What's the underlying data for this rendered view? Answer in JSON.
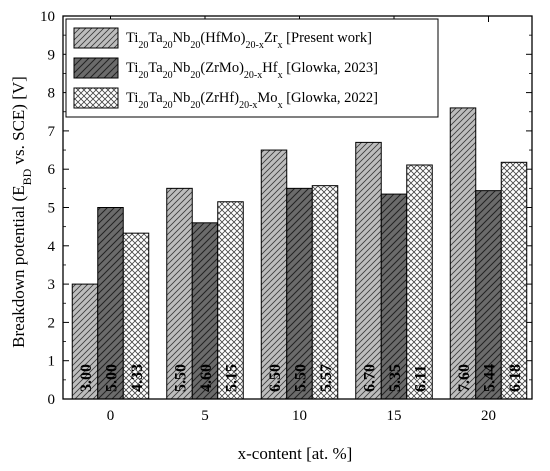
{
  "chart_data": {
    "type": "bar",
    "xlabel": "x-content [at. %]",
    "ylabel": "Breakdown potential (E_BD vs. SCE) [V]",
    "categories": [
      "0",
      "5",
      "10",
      "15",
      "20"
    ],
    "ylim": [
      0,
      10
    ],
    "yticks": [
      "0",
      "1",
      "2",
      "3",
      "4",
      "5",
      "6",
      "7",
      "8",
      "9",
      "10"
    ],
    "grid": false,
    "legend_position": "top-left",
    "series": [
      {
        "name": "Ti20Ta20Nb20(HfMo)20-xZrx [Present work]",
        "legend": {
          "pre": "Ti",
          "s1": "20",
          "m1": "Ta",
          "s2": "20",
          "m2": "Nb",
          "s3": "20",
          "m3": "(HfMo)",
          "s4": "20-x",
          "m4": "Zr",
          "s5": "x",
          "post": " [Present work]"
        },
        "values": [
          3.0,
          5.5,
          6.5,
          6.7,
          7.6
        ],
        "labels": [
          "3.00",
          "5.50",
          "6.50",
          "6.70",
          "7.60"
        ],
        "fill": "#bdbdbd",
        "pattern": "hatch-dense"
      },
      {
        "name": "Ti20Ta20Nb20(ZrMo)20-xHfx [Glowka, 2023]",
        "legend": {
          "pre": "Ti",
          "s1": "20",
          "m1": "Ta",
          "s2": "20",
          "m2": "Nb",
          "s3": "20",
          "m3": "(ZrMo)",
          "s4": "20-x",
          "m4": "Hf",
          "s5": "x",
          "post": " [Glowka, 2023]"
        },
        "values": [
          5.0,
          4.6,
          5.5,
          5.35,
          5.44
        ],
        "labels": [
          "5.00",
          "4.60",
          "5.50",
          "5.35",
          "5.44"
        ],
        "fill": "#6b6b6b",
        "pattern": "hatch"
      },
      {
        "name": "Ti20Ta20Nb20(ZrHf)20-xMox [Glowka, 2022]",
        "legend": {
          "pre": "Ti",
          "s1": "20",
          "m1": "Ta",
          "s2": "20",
          "m2": "Nb",
          "s3": "20",
          "m3": "(ZrHf)",
          "s4": "20-x",
          "m4": "Mo",
          "s5": "x",
          "post": " [Glowka, 2022]"
        },
        "values": [
          4.33,
          5.15,
          5.57,
          6.11,
          6.18
        ],
        "labels": [
          "4.33",
          "5.15",
          "5.57",
          "6.11",
          "6.18"
        ],
        "fill": "#ffffff",
        "pattern": "crosshatch"
      }
    ]
  }
}
